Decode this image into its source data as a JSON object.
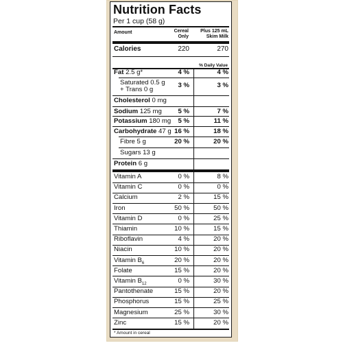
{
  "title": "Nutrition Facts",
  "serving": "Per 1 cup (58 g)",
  "headers": {
    "amount": "Amount",
    "col1_line1": "Cereal",
    "col1_line2": "Only",
    "col2_line1": "Plus 125 mL",
    "col2_line2": "Skim Milk"
  },
  "calories": {
    "label": "Calories",
    "c1": "220",
    "c2": "270"
  },
  "daily_value": "% Daily Value",
  "nutrients": {
    "fat": {
      "label": "Fat",
      "amount": "2.5 g*",
      "c1": "4 %",
      "c2": "4 %"
    },
    "sat_line1": "Saturated 0.5 g",
    "sat_line2": "+ Trans 0 g",
    "sat": {
      "c1": "3 %",
      "c2": "3 %"
    },
    "cholesterol": {
      "label": "Cholesterol",
      "amount": "0 mg"
    },
    "sodium": {
      "label": "Sodium",
      "amount": "125 mg",
      "c1": "5 %",
      "c2": "7 %"
    },
    "potassium": {
      "label": "Potassium",
      "amount": "180 mg",
      "c1": "5 %",
      "c2": "11 %"
    },
    "carbohydrate": {
      "label": "Carbohydrate",
      "amount": "47 g",
      "c1": "16 %",
      "c2": "18 %"
    },
    "fibre": {
      "label": "Fibre 5 g",
      "c1": "20 %",
      "c2": "20 %"
    },
    "sugars": {
      "label": "Sugars 13 g"
    },
    "protein": {
      "label": "Protein",
      "amount": "6 g"
    }
  },
  "vitamins": {
    "vitamin_a": {
      "label": "Vitamin A",
      "c1": "0 %",
      "c2": "8 %"
    },
    "vitamin_c": {
      "label": "Vitamin C",
      "c1": "0 %",
      "c2": "0 %"
    },
    "calcium": {
      "label": "Calcium",
      "c1": "2 %",
      "c2": "15 %"
    },
    "iron": {
      "label": "Iron",
      "c1": "50 %",
      "c2": "50 %"
    },
    "vitamin_d": {
      "label": "Vitamin D",
      "c1": "0 %",
      "c2": "25 %"
    },
    "thiamin": {
      "label": "Thiamin",
      "c1": "10 %",
      "c2": "15 %"
    },
    "riboflavin": {
      "label": "Riboflavin",
      "c1": "4 %",
      "c2": "20 %"
    },
    "niacin": {
      "label": "Niacin",
      "c1": "10 %",
      "c2": "20 %"
    },
    "vitamin_b6": {
      "label": "Vitamin B",
      "sub": "6",
      "c1": "20 %",
      "c2": "20 %"
    },
    "folate": {
      "label": "Folate",
      "c1": "15 %",
      "c2": "20 %"
    },
    "vitamin_b12": {
      "label": "Vitamin B",
      "sub": "12",
      "c1": "0 %",
      "c2": "30 %"
    },
    "pantothenate": {
      "label": "Pantothenate",
      "c1": "15 %",
      "c2": "20 %"
    },
    "phosphorus": {
      "label": "Phosphorus",
      "c1": "15 %",
      "c2": "25 %"
    },
    "magnesium": {
      "label": "Magnesium",
      "c1": "25 %",
      "c2": "30 %"
    },
    "zinc": {
      "label": "Zinc",
      "c1": "15 %",
      "c2": "20 %"
    }
  },
  "footnote": "* Amount in cereal"
}
